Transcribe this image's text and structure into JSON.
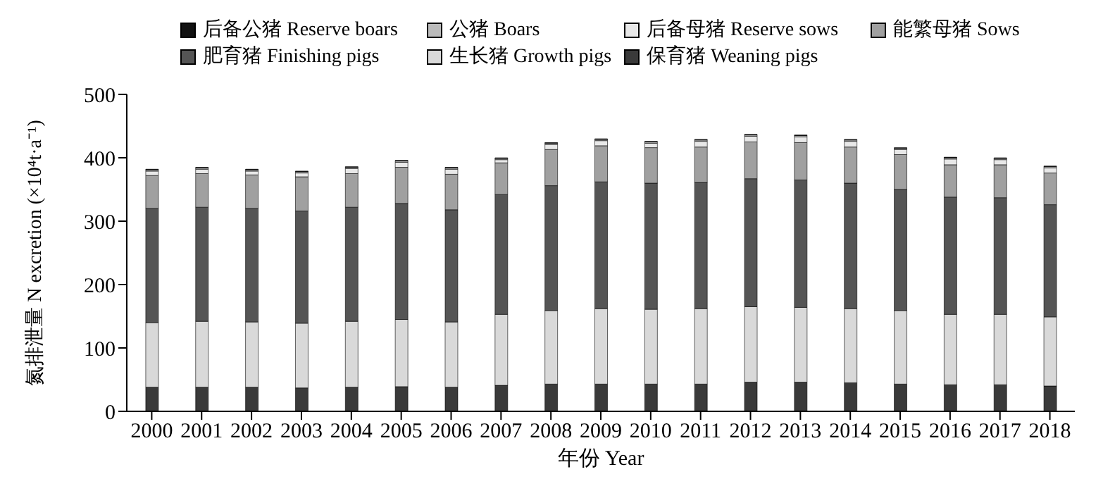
{
  "chart_data": {
    "type": "bar",
    "stacked": true,
    "xlabel": "年份 Year",
    "ylabel": "氮排泄量 N excretion (×10⁴t·a⁻¹)",
    "categories": [
      "2000",
      "2001",
      "2002",
      "2003",
      "2004",
      "2005",
      "2006",
      "2007",
      "2008",
      "2009",
      "2010",
      "2011",
      "2012",
      "2013",
      "2014",
      "2015",
      "2016",
      "2017",
      "2018"
    ],
    "ylim": [
      0,
      500
    ],
    "yticks": [
      0,
      100,
      200,
      300,
      400,
      500
    ],
    "grid": false,
    "legend": "top",
    "series": [
      {
        "name": "保育猪 Weaning pigs",
        "color": "#3a3a3a",
        "values": [
          38,
          38,
          38,
          37,
          38,
          39,
          38,
          41,
          43,
          43,
          43,
          43,
          46,
          46,
          45,
          43,
          42,
          42,
          40
        ]
      },
      {
        "name": "生长猪 Growth pigs",
        "color": "#d9d9d9",
        "values": [
          102,
          104,
          103,
          102,
          104,
          106,
          103,
          112,
          116,
          119,
          118,
          119,
          119,
          118,
          117,
          116,
          111,
          111,
          109
        ]
      },
      {
        "name": "肥育猪 Finishing pigs",
        "color": "#555555",
        "values": [
          180,
          180,
          179,
          177,
          180,
          183,
          177,
          189,
          197,
          200,
          199,
          199,
          202,
          201,
          198,
          191,
          185,
          184,
          177
        ]
      },
      {
        "name": "能繁母猪 Sows",
        "color": "#a0a0a0",
        "values": [
          52,
          53,
          53,
          54,
          53,
          57,
          56,
          50,
          57,
          57,
          56,
          56,
          58,
          59,
          57,
          55,
          51,
          52,
          50
        ]
      },
      {
        "name": "后备母猪 Reserve sows",
        "color": "#e8e8e8",
        "values": [
          7,
          7,
          6,
          6,
          8,
          8,
          8,
          5,
          8,
          8,
          7,
          9,
          9,
          9,
          9,
          8,
          9,
          8,
          8
        ]
      },
      {
        "name": "公猪 Boars",
        "color": "#bbbbbb",
        "values": [
          2,
          2,
          2,
          2,
          2,
          2,
          2,
          2,
          2,
          2,
          2,
          2,
          2,
          2,
          2,
          2,
          2,
          2,
          2
        ]
      },
      {
        "name": "后备公猪 Reserve boars",
        "color": "#111111",
        "values": [
          1,
          1,
          1,
          1,
          1,
          1,
          1,
          1,
          1,
          1,
          1,
          1,
          1,
          1,
          1,
          1,
          1,
          1,
          1
        ]
      }
    ]
  }
}
